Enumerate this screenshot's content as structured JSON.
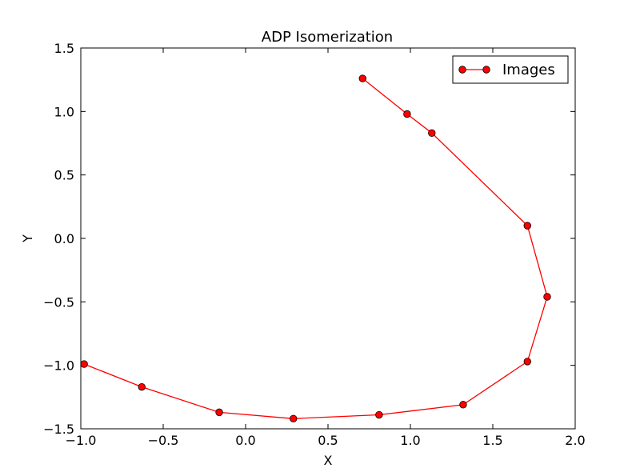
{
  "chart_data": {
    "type": "line",
    "title": "ADP Isomerization",
    "xlabel": "X",
    "ylabel": "Y",
    "xlim": [
      -1.0,
      2.0
    ],
    "ylim": [
      -1.5,
      1.5
    ],
    "xticks": [
      -1.0,
      -0.5,
      0.0,
      0.5,
      1.0,
      1.5,
      2.0
    ],
    "xtick_labels": [
      "−1.0",
      "−0.5",
      "0.0",
      "0.5",
      "1.0",
      "1.5",
      "2.0"
    ],
    "yticks": [
      -1.5,
      -1.0,
      -0.5,
      0.0,
      0.5,
      1.0,
      1.5
    ],
    "ytick_labels": [
      "−1.5",
      "−1.0",
      "−0.5",
      "0.0",
      "0.5",
      "1.0",
      "1.5"
    ],
    "grid": false,
    "legend": {
      "position": "top-right",
      "entries": [
        "Images"
      ]
    },
    "series": [
      {
        "name": "Images",
        "color": "#ff0000",
        "marker": "circle",
        "x": [
          0.71,
          0.98,
          1.13,
          1.71,
          1.83,
          1.71,
          1.32,
          0.81,
          0.29,
          -0.16,
          -0.63,
          -0.98
        ],
        "y": [
          1.26,
          0.98,
          0.83,
          0.1,
          -0.46,
          -0.97,
          -1.31,
          -1.39,
          -1.42,
          -1.37,
          -1.17,
          -0.99
        ]
      }
    ]
  }
}
